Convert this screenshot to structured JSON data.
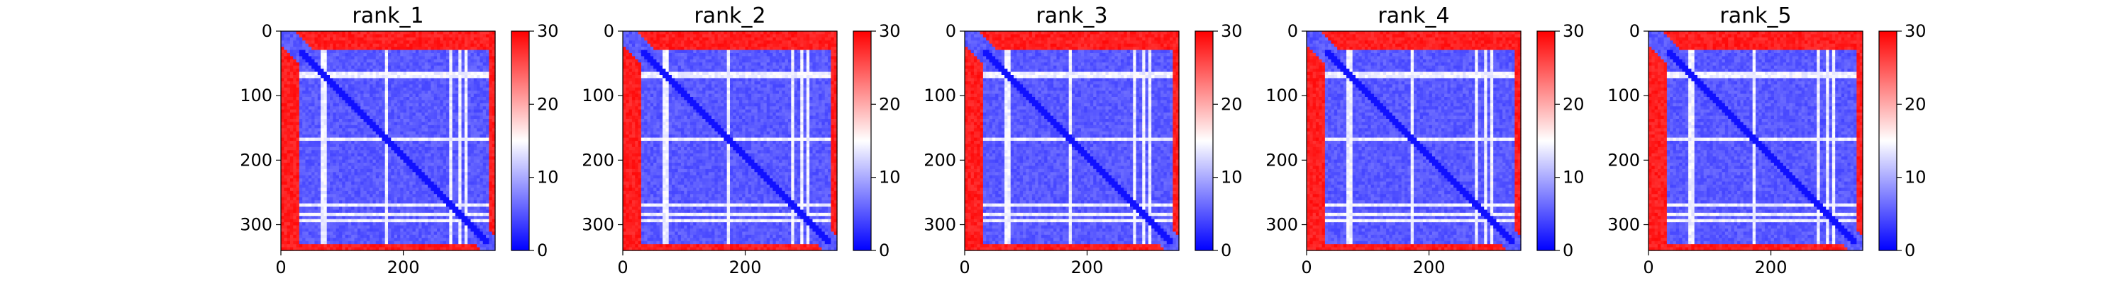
{
  "chart_data": [
    {
      "type": "heatmap",
      "title": "rank_1",
      "xlabel": "",
      "ylabel": "",
      "xlim": [
        0,
        350
      ],
      "ylim": [
        340,
        0
      ],
      "xticks": [
        0,
        200
      ],
      "yticks": [
        0,
        100,
        200,
        300
      ],
      "colorbar": {
        "min": 0,
        "max": 30,
        "ticks": [
          0,
          10,
          20,
          30
        ],
        "colormap": "bwr"
      },
      "matrix_size": 350
    },
    {
      "type": "heatmap",
      "title": "rank_2",
      "xlabel": "",
      "ylabel": "",
      "xlim": [
        0,
        350
      ],
      "ylim": [
        340,
        0
      ],
      "xticks": [
        0,
        200
      ],
      "yticks": [
        0,
        100,
        200,
        300
      ],
      "colorbar": {
        "min": 0,
        "max": 30,
        "ticks": [
          0,
          10,
          20,
          30
        ],
        "colormap": "bwr"
      },
      "matrix_size": 350
    },
    {
      "type": "heatmap",
      "title": "rank_3",
      "xlabel": "",
      "ylabel": "",
      "xlim": [
        0,
        350
      ],
      "ylim": [
        340,
        0
      ],
      "xticks": [
        0,
        200
      ],
      "yticks": [
        0,
        100,
        200,
        300
      ],
      "colorbar": {
        "min": 0,
        "max": 30,
        "ticks": [
          0,
          10,
          20,
          30
        ],
        "colormap": "bwr"
      },
      "matrix_size": 350
    },
    {
      "type": "heatmap",
      "title": "rank_4",
      "xlabel": "",
      "ylabel": "",
      "xlim": [
        0,
        350
      ],
      "ylim": [
        340,
        0
      ],
      "xticks": [
        0,
        200
      ],
      "yticks": [
        0,
        100,
        200,
        300
      ],
      "colorbar": {
        "min": 0,
        "max": 30,
        "ticks": [
          0,
          10,
          20,
          30
        ],
        "colormap": "bwr"
      },
      "matrix_size": 350
    },
    {
      "type": "heatmap",
      "title": "rank_5",
      "xlabel": "",
      "ylabel": "",
      "xlim": [
        0,
        350
      ],
      "ylim": [
        340,
        0
      ],
      "xticks": [
        0,
        200
      ],
      "yticks": [
        0,
        100,
        200,
        300
      ],
      "colorbar": {
        "min": 0,
        "max": 30,
        "ticks": [
          0,
          10,
          20,
          30
        ],
        "colormap": "bwr"
      },
      "matrix_size": 350
    }
  ]
}
